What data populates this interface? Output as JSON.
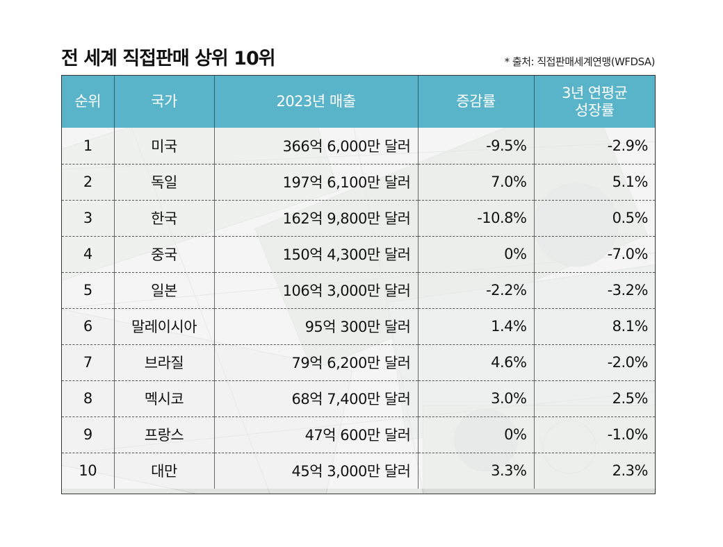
{
  "title": "전 세계 직접판매 상위 10위",
  "source": "* 출처: 직접판매세계연맹(WFDSA)",
  "chart_data": {
    "type": "table",
    "columns": [
      "순위",
      "국가",
      "2023년 매출",
      "증감률",
      "3년 연평균 성장률"
    ],
    "rows": [
      {
        "rank": "1",
        "country": "미국",
        "sales": "366억 6,000만 달러",
        "change": "-9.5%",
        "cagr": "-2.9%"
      },
      {
        "rank": "2",
        "country": "독일",
        "sales": "197억 6,100만 달러",
        "change": "7.0%",
        "cagr": "5.1%"
      },
      {
        "rank": "3",
        "country": "한국",
        "sales": "162억 9,800만 달러",
        "change": "-10.8%",
        "cagr": "0.5%"
      },
      {
        "rank": "4",
        "country": "중국",
        "sales": "150억 4,300만 달러",
        "change": "0%",
        "cagr": "-7.0%"
      },
      {
        "rank": "5",
        "country": "일본",
        "sales": "106억 3,000만 달러",
        "change": "-2.2%",
        "cagr": "-3.2%"
      },
      {
        "rank": "6",
        "country": "말레이시아",
        "sales": "95억 300만 달러",
        "change": "1.4%",
        "cagr": "8.1%"
      },
      {
        "rank": "7",
        "country": "브라질",
        "sales": "79억 6,200만 달러",
        "change": "4.6%",
        "cagr": "-2.0%"
      },
      {
        "rank": "8",
        "country": "멕시코",
        "sales": "68억 7,400만 달러",
        "change": "3.0%",
        "cagr": "2.5%"
      },
      {
        "rank": "9",
        "country": "프랑스",
        "sales": "47억 600만 달러",
        "change": "0%",
        "cagr": "-1.0%"
      },
      {
        "rank": "10",
        "country": "대만",
        "sales": "45억 3,000만 달러",
        "change": "3.3%",
        "cagr": "2.3%"
      }
    ]
  },
  "colors": {
    "header_bg": "#5ab4c9",
    "header_text": "#ffffff"
  },
  "background_icon": "banknote-collage"
}
